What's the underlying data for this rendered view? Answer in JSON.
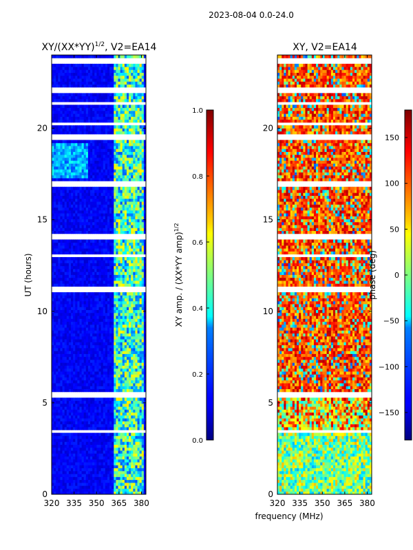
{
  "suptitle": "2023-08-04 0.0-24.0",
  "chart_data": [
    {
      "type": "heatmap",
      "title_main": "XY/(XX*YY)",
      "title_exp": "1/2",
      "title_rest": ", V2=EA14",
      "xlabel": "",
      "ylabel": "UT (hours)",
      "xlim": [
        320,
        383
      ],
      "ylim": [
        0,
        24
      ],
      "xticks": [
        320,
        335,
        350,
        365,
        380
      ],
      "yticks": [
        0,
        5,
        10,
        15,
        20
      ],
      "colorbar": {
        "label_main": "XY amp. / (XX*YY amp)",
        "label_exp": "1/2",
        "range": [
          0.0,
          1.0
        ],
        "ticks": [
          "0.0",
          "0.2",
          "0.4",
          "0.6",
          "0.8",
          "1.0"
        ],
        "colormap": "jet"
      }
    },
    {
      "type": "heatmap",
      "title": "XY, V2=EA14",
      "xlabel": "frequency (MHz)",
      "ylabel": "",
      "xlim": [
        320,
        383
      ],
      "ylim": [
        0,
        24
      ],
      "xticks": [
        320,
        335,
        350,
        365,
        380
      ],
      "yticks": [
        0,
        5,
        10,
        15,
        20
      ],
      "colorbar": {
        "label": "phase (deg)",
        "range": [
          -180,
          180
        ],
        "ticks": [
          "150",
          "100",
          "50",
          "0",
          "−50",
          "−100",
          "−150"
        ],
        "colormap": "jet"
      }
    }
  ]
}
